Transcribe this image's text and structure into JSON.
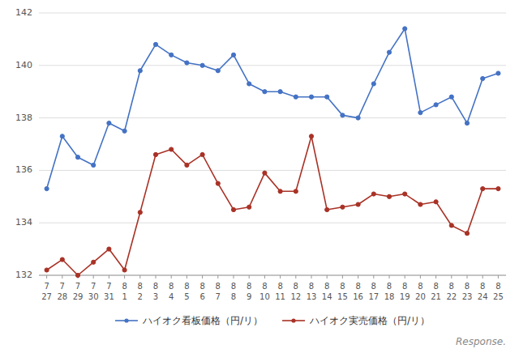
{
  "chart_data": {
    "type": "line",
    "categories": [
      "7\n27",
      "7\n28",
      "7\n29",
      "7\n30",
      "7\n31",
      "8\n1",
      "8\n2",
      "8\n3",
      "8\n4",
      "8\n5",
      "8\n6",
      "8\n7",
      "8\n8",
      "8\n9",
      "8\n10",
      "8\n11",
      "8\n12",
      "8\n13",
      "8\n14",
      "8\n15",
      "8\n16",
      "8\n17",
      "8\n18",
      "8\n19",
      "8\n20",
      "8\n21",
      "8\n22",
      "8\n23",
      "8\n24",
      "8\n25"
    ],
    "series": [
      {
        "name": "ハイオク看板価格（円/リ）",
        "color": "#4472C4",
        "marker": "circle",
        "line_style": "solid",
        "values": [
          135.3,
          137.3,
          136.5,
          136.2,
          137.8,
          137.5,
          139.8,
          140.8,
          140.4,
          140.1,
          140.0,
          139.8,
          140.4,
          139.3,
          139.0,
          139.0,
          138.8,
          138.8,
          138.8,
          138.1,
          138.0,
          139.3,
          140.5,
          141.4,
          138.2,
          138.5,
          138.8,
          137.8,
          139.5,
          139.7
        ]
      },
      {
        "name": "ハイオク実売価格（円/リ）",
        "color": "#A93226",
        "marker": "circle",
        "line_style": "solid",
        "values": [
          132.2,
          132.6,
          132.0,
          132.5,
          133.0,
          132.2,
          134.4,
          136.6,
          136.8,
          136.2,
          136.6,
          135.5,
          134.5,
          134.6,
          135.9,
          135.2,
          135.2,
          137.3,
          134.5,
          134.6,
          134.7,
          135.1,
          135.0,
          135.1,
          134.7,
          134.8,
          133.9,
          133.6,
          135.3,
          135.3
        ]
      }
    ],
    "ylim": [
      132,
      142
    ],
    "yticks": [
      132,
      134,
      136,
      138,
      140,
      142
    ],
    "grid": true,
    "legend": "bottom",
    "annotations": [
      "Response."
    ]
  }
}
